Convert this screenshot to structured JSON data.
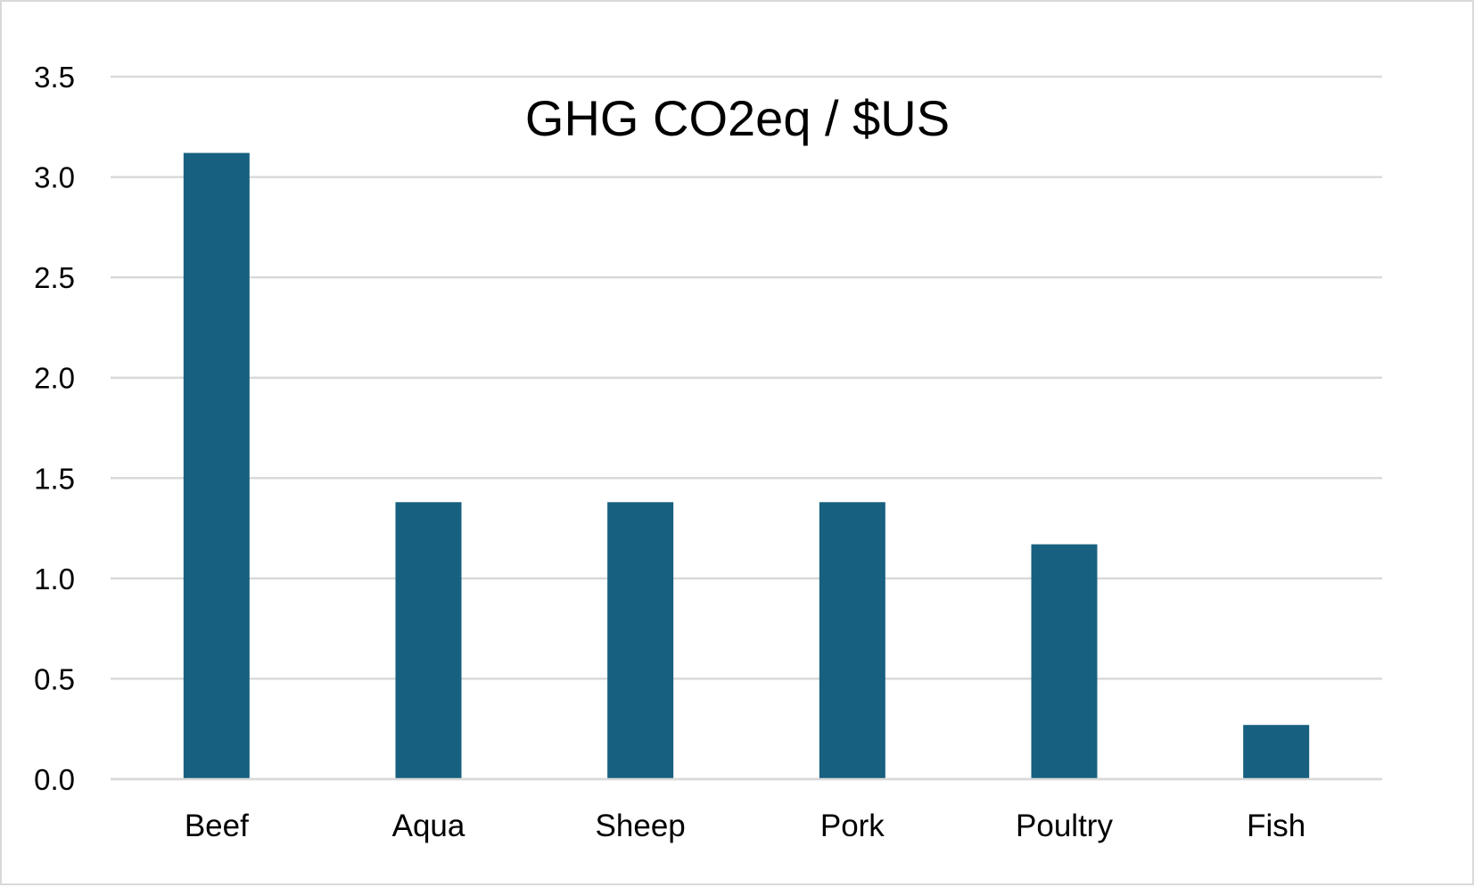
{
  "chart_data": {
    "type": "bar",
    "title": "GHG CO2eq / $US",
    "xlabel": "",
    "ylabel": "",
    "categories": [
      "Beef",
      "Aqua",
      "Sheep",
      "Pork",
      "Poultry",
      "Fish"
    ],
    "values": [
      3.12,
      1.38,
      1.38,
      1.38,
      1.17,
      0.27
    ],
    "ylim": [
      0,
      3.5
    ],
    "yticks": [
      "0.0",
      "0.5",
      "1.0",
      "1.5",
      "2.0",
      "2.5",
      "3.0",
      "3.5"
    ],
    "grid": true,
    "legend": "none",
    "bar_color": "#17607f",
    "grid_color": "#d9d9d9"
  }
}
